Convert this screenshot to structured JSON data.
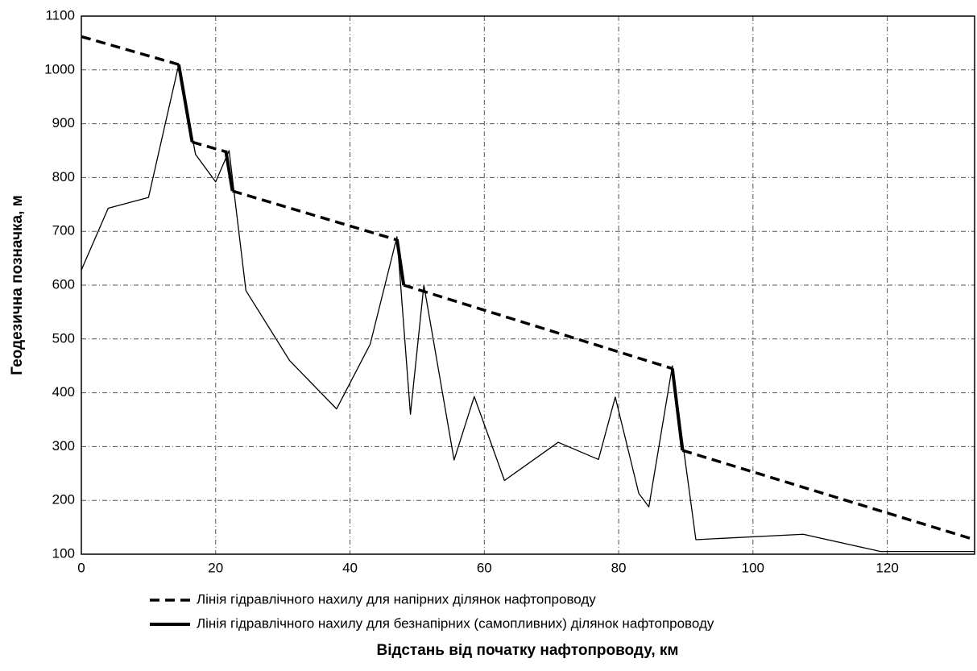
{
  "chart_data": {
    "type": "line",
    "x_label": "Відстань від початку нафтопроводу, км",
    "y_label": "Геодезична позначка, м",
    "xlim": [
      0,
      133
    ],
    "ylim": [
      100,
      1100
    ],
    "xticks": [
      0,
      20,
      40,
      60,
      80,
      100,
      120
    ],
    "yticks": [
      100,
      200,
      300,
      400,
      500,
      600,
      700,
      800,
      900,
      1000,
      1100
    ],
    "grid": true,
    "series": [
      {
        "color": "#000000",
        "style": "thin",
        "x": [
          0,
          4,
          10,
          14.5,
          17,
          20,
          22,
          24.5,
          31,
          38,
          43,
          47,
          49,
          51,
          55.5,
          58.5,
          63,
          71,
          77,
          79.5,
          83,
          84.5,
          88,
          91.5,
          107.5,
          119,
          133
        ],
        "values": [
          628,
          743,
          763,
          1010,
          843,
          792,
          850,
          590,
          460,
          370,
          490,
          690,
          360,
          600,
          275,
          393,
          237,
          308,
          276,
          392,
          213,
          188,
          450,
          127,
          137,
          105,
          105
        ]
      },
      {
        "name": "Лінія гідравлічного нахилу для напірних ділянок нафтопроводу",
        "color": "#000000",
        "style": "dashed",
        "x": [
          0,
          14.5,
          null,
          16.5,
          21.5,
          null,
          22.5,
          47,
          null,
          48,
          88,
          null,
          89.5,
          133
        ],
        "values": [
          1062,
          1010,
          null,
          866,
          848,
          null,
          775,
          684,
          null,
          600,
          445,
          null,
          293,
          127
        ]
      },
      {
        "name": "Лінія гідравлічного нахилу для безнапірних (самопливних) ділянок нафтопроводу",
        "color": "#000000",
        "style": "thick",
        "x": [
          14.5,
          16.5,
          null,
          21.5,
          22.5,
          null,
          47,
          48,
          null,
          88,
          89.5
        ],
        "values": [
          1010,
          866,
          null,
          850,
          775,
          null,
          685,
          600,
          null,
          445,
          293
        ]
      }
    ]
  }
}
